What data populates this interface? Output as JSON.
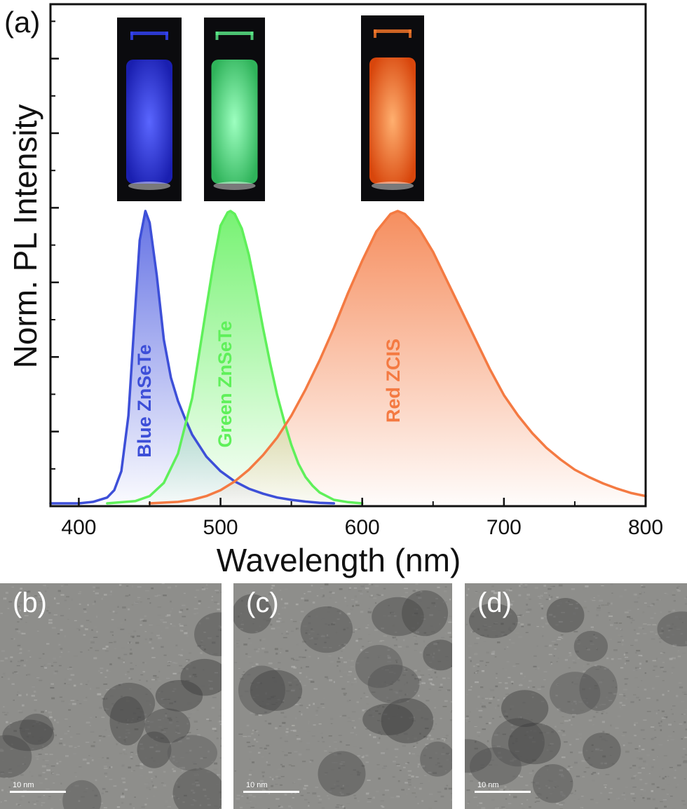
{
  "panel_a": {
    "label": "(a)",
    "chart_data": {
      "type": "area",
      "title": "",
      "xlabel": "Wavelength (nm)",
      "ylabel": "Norm. PL Intensity",
      "xlim": [
        380,
        800
      ],
      "ylim": [
        0,
        1.0
      ],
      "x_ticks": [
        400,
        500,
        600,
        700,
        800
      ],
      "x_tick_labels": [
        "400",
        "500",
        "600",
        "700",
        "800"
      ],
      "y_tick_labels": [],
      "grid": false,
      "legend": "none (series labelled directly on the curves)",
      "series": [
        {
          "name": "Blue ZnSeTe",
          "color": "#3d4fd8",
          "peak_nm": 447,
          "x": [
            380,
            400,
            410,
            420,
            425,
            430,
            435,
            440,
            443,
            447,
            450,
            455,
            460,
            465,
            470,
            475,
            480,
            490,
            500,
            510,
            520,
            530,
            540,
            550,
            560,
            570,
            580
          ],
          "y": [
            0.0,
            0.0,
            0.005,
            0.02,
            0.045,
            0.11,
            0.3,
            0.68,
            0.9,
            1.0,
            0.96,
            0.78,
            0.56,
            0.43,
            0.35,
            0.29,
            0.235,
            0.16,
            0.11,
            0.075,
            0.05,
            0.033,
            0.02,
            0.012,
            0.006,
            0.002,
            0.0
          ]
        },
        {
          "name": "Green ZnSeTe",
          "color": "#5ff05a",
          "peak_nm": 507,
          "x": [
            420,
            440,
            450,
            460,
            470,
            480,
            490,
            495,
            500,
            505,
            507,
            510,
            515,
            520,
            525,
            530,
            535,
            540,
            545,
            550,
            555,
            560,
            565,
            570,
            580,
            590,
            600
          ],
          "y": [
            0.0,
            0.008,
            0.025,
            0.07,
            0.17,
            0.36,
            0.67,
            0.82,
            0.95,
            0.995,
            1.0,
            0.99,
            0.94,
            0.85,
            0.73,
            0.6,
            0.48,
            0.37,
            0.28,
            0.2,
            0.135,
            0.09,
            0.06,
            0.037,
            0.012,
            0.004,
            0.0
          ]
        },
        {
          "name": "Red ZCIS",
          "color": "#f47a42",
          "peak_nm": 622,
          "x": [
            450,
            470,
            480,
            490,
            500,
            510,
            520,
            530,
            540,
            550,
            560,
            570,
            580,
            590,
            600,
            610,
            620,
            625,
            630,
            640,
            650,
            660,
            670,
            680,
            690,
            700,
            710,
            720,
            730,
            740,
            750,
            760,
            770,
            780,
            790,
            800
          ],
          "y": [
            0.0,
            0.005,
            0.012,
            0.025,
            0.045,
            0.075,
            0.115,
            0.165,
            0.225,
            0.3,
            0.39,
            0.49,
            0.6,
            0.72,
            0.83,
            0.93,
            0.99,
            1.0,
            0.99,
            0.94,
            0.86,
            0.76,
            0.66,
            0.56,
            0.46,
            0.37,
            0.3,
            0.24,
            0.19,
            0.15,
            0.115,
            0.09,
            0.068,
            0.05,
            0.035,
            0.025
          ]
        }
      ],
      "annotations": [
        "Blue ZnSeTe",
        "Green ZnSeTe",
        "Red ZCIS"
      ],
      "insets": [
        {
          "name": "blue-vial-photo",
          "color": "#3545ff"
        },
        {
          "name": "green-vial-photo",
          "color": "#5cf08c"
        },
        {
          "name": "red-vial-photo",
          "color": "#ff7a2a"
        }
      ]
    }
  },
  "tem_panels": [
    {
      "label": "(b)",
      "scale_label": "10 nm"
    },
    {
      "label": "(c)",
      "scale_label": "10 nm"
    },
    {
      "label": "(d)",
      "scale_label": "10 nm"
    }
  ]
}
